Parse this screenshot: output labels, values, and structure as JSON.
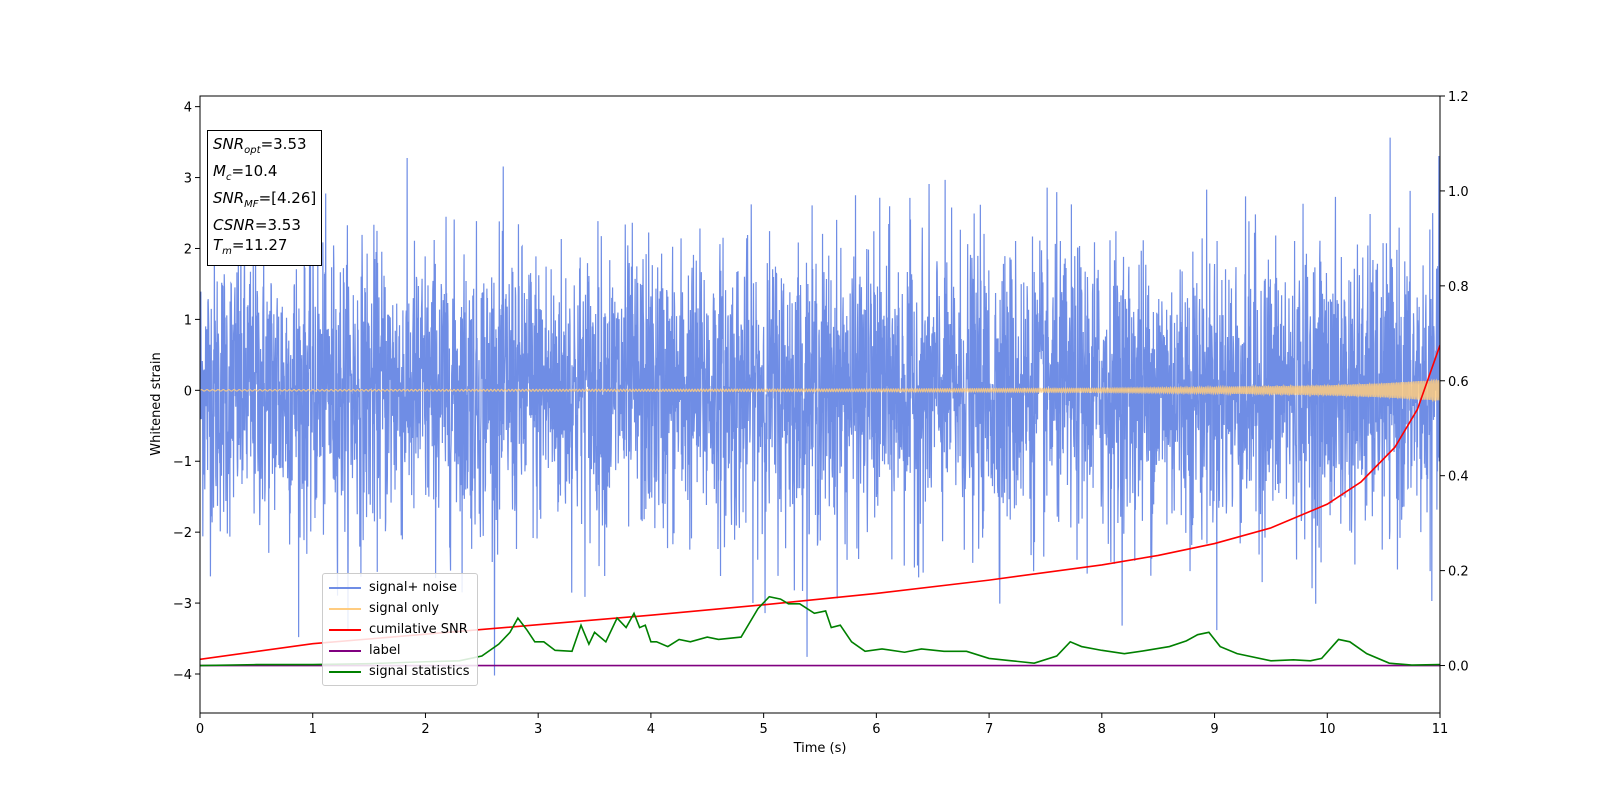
{
  "chart_data": {
    "type": "line",
    "xlabel": "Time (s)",
    "ylabel": "Whitened strain",
    "xlim": [
      0,
      11
    ],
    "ylim": [
      -4.55,
      4.15
    ],
    "y2lim": [
      -0.1,
      1.2
    ],
    "xticks": [
      "0",
      "1",
      "2",
      "3",
      "4",
      "5",
      "6",
      "7",
      "8",
      "9",
      "10",
      "11"
    ],
    "yticks": [
      "−4",
      "−3",
      "−2",
      "−1",
      "0",
      "1",
      "2",
      "3",
      "4"
    ],
    "y2ticks": [
      "0.0",
      "0.2",
      "0.4",
      "0.6",
      "0.8",
      "1.0",
      "1.2"
    ],
    "legend_position": "lower-left",
    "info_box": {
      "rows": [
        {
          "name": "SNR",
          "sub": "opt",
          "value": "=3.53"
        },
        {
          "name": "M",
          "sub": "c",
          "value": "=10.4"
        },
        {
          "name": "SNR",
          "sub": "MF",
          "value": "=[4.26]"
        },
        {
          "name": "CSNR",
          "sub": "",
          "value": "=3.53"
        },
        {
          "name": "T",
          "sub": "m",
          "value": "=11.27"
        }
      ]
    },
    "series": [
      {
        "name": "signal+ noise",
        "color": "#6f8de5",
        "axis": "left",
        "description_values": "random noise, amplitude roughly within [-2.3, 2.5] with peaks to about 3.7 and -4.1"
      },
      {
        "name": "signal only",
        "color": "#ffcc80",
        "axis": "left",
        "envelope": {
          "x": [
            0,
            2,
            4,
            6,
            8,
            9,
            10,
            10.5,
            11
          ],
          "amplitude": [
            0.01,
            0.012,
            0.015,
            0.02,
            0.03,
            0.045,
            0.07,
            0.1,
            0.15
          ]
        }
      },
      {
        "name": "cumilative SNR",
        "color": "#ff0000",
        "axis": "right",
        "x": [
          0,
          1,
          2,
          3,
          4,
          5,
          6,
          7,
          8,
          8.5,
          9,
          9.5,
          10,
          10.3,
          10.6,
          10.8,
          11
        ],
        "y": [
          0.013,
          0.046,
          0.066,
          0.086,
          0.106,
          0.128,
          0.152,
          0.18,
          0.212,
          0.232,
          0.257,
          0.29,
          0.34,
          0.387,
          0.46,
          0.54,
          0.675
        ]
      },
      {
        "name": "label",
        "color": "#800080",
        "axis": "right",
        "x": [
          0,
          11
        ],
        "y": [
          0.0,
          0.0
        ]
      },
      {
        "name": "signal statistics",
        "color": "#008000",
        "axis": "right",
        "x": [
          0,
          0.5,
          1,
          1.5,
          2,
          2.3,
          2.5,
          2.65,
          2.75,
          2.82,
          2.9,
          2.97,
          3.05,
          3.15,
          3.3,
          3.38,
          3.45,
          3.5,
          3.6,
          3.7,
          3.78,
          3.85,
          3.9,
          3.95,
          4.0,
          4.05,
          4.15,
          4.25,
          4.35,
          4.5,
          4.6,
          4.8,
          4.95,
          5.05,
          5.15,
          5.22,
          5.32,
          5.45,
          5.55,
          5.6,
          5.68,
          5.78,
          5.9,
          6.05,
          6.25,
          6.4,
          6.6,
          6.8,
          7.0,
          7.2,
          7.4,
          7.6,
          7.72,
          7.82,
          8.0,
          8.2,
          8.4,
          8.6,
          8.75,
          8.85,
          8.95,
          9.05,
          9.2,
          9.5,
          9.7,
          9.85,
          9.95,
          10.1,
          10.2,
          10.35,
          10.55,
          10.75,
          11
        ],
        "y": [
          0.0,
          0.002,
          0.002,
          0.004,
          0.008,
          0.01,
          0.02,
          0.045,
          0.07,
          0.1,
          0.075,
          0.05,
          0.05,
          0.032,
          0.03,
          0.085,
          0.045,
          0.07,
          0.05,
          0.1,
          0.08,
          0.11,
          0.08,
          0.085,
          0.05,
          0.05,
          0.04,
          0.055,
          0.05,
          0.06,
          0.055,
          0.06,
          0.12,
          0.145,
          0.14,
          0.13,
          0.13,
          0.11,
          0.115,
          0.08,
          0.085,
          0.05,
          0.03,
          0.035,
          0.028,
          0.035,
          0.03,
          0.03,
          0.015,
          0.01,
          0.005,
          0.02,
          0.05,
          0.04,
          0.032,
          0.025,
          0.032,
          0.04,
          0.052,
          0.065,
          0.07,
          0.04,
          0.025,
          0.01,
          0.012,
          0.01,
          0.015,
          0.055,
          0.05,
          0.025,
          0.005,
          0.001,
          0.002
        ]
      }
    ]
  }
}
